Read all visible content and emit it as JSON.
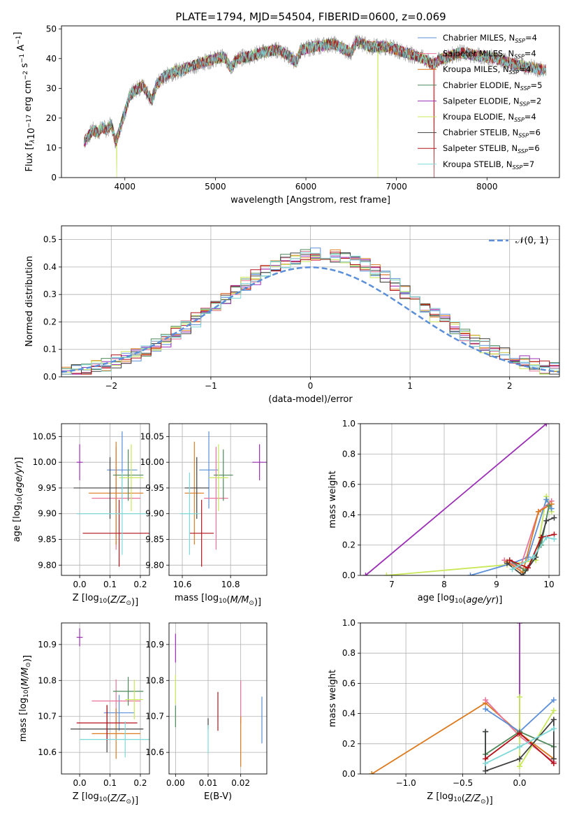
{
  "figure_title": "PLATE=1794, MJD=54504, FIBERID=0600, z=0.069",
  "colors": {
    "Chabrier MILES": "#5b8fd9",
    "Salpeter MILES": "#e8749a",
    "Kroupa MILES": "#dc7a1e",
    "Chabrier ELODIE": "#4f8a5a",
    "Salpeter ELODIE": "#9b2fb5",
    "Kroupa ELODIE": "#c8e85a",
    "Chabrier STELIB": "#404040",
    "Salpeter STELIB": "#b3121a",
    "Kroupa STELIB": "#7fd8d8"
  },
  "chart_data": [
    {
      "id": "spectrum",
      "type": "line",
      "xlabel": "wavelength [Angstrom, rest frame]",
      "ylabel": "Flux [f_λ10^-17 erg cm^-2 s^-1 A^-1]",
      "xlim": [
        3300,
        8800
      ],
      "ylim": [
        0,
        51
      ],
      "xticks": [
        4000,
        5000,
        6000,
        7000,
        8000
      ],
      "yticks": [
        0,
        10,
        20,
        30,
        40,
        50
      ],
      "legend_position": "upper-right",
      "legend": [
        {
          "name": "Chabrier MILES",
          "nssp": "4"
        },
        {
          "name": "Salpeter MILES",
          "nssp": "4"
        },
        {
          "name": "Kroupa MILES",
          "nssp": "4"
        },
        {
          "name": "Chabrier ELODIE",
          "nssp": "5"
        },
        {
          "name": "Salpeter ELODIE",
          "nssp": "2"
        },
        {
          "name": "Kroupa ELODIE",
          "nssp": "4"
        },
        {
          "name": "Chabrier STELIB",
          "nssp": "6"
        },
        {
          "name": "Salpeter STELIB",
          "nssp": "6"
        },
        {
          "name": "Kroupa STELIB",
          "nssp": "7"
        }
      ],
      "envelope": [
        [
          3550,
          12
        ],
        [
          3600,
          14
        ],
        [
          3650,
          16
        ],
        [
          3700,
          15
        ],
        [
          3750,
          17
        ],
        [
          3800,
          16
        ],
        [
          3850,
          18
        ],
        [
          3900,
          12
        ],
        [
          3950,
          17
        ],
        [
          4000,
          22
        ],
        [
          4050,
          27
        ],
        [
          4100,
          29
        ],
        [
          4150,
          30
        ],
        [
          4200,
          31
        ],
        [
          4300,
          26
        ],
        [
          4350,
          31
        ],
        [
          4400,
          33
        ],
        [
          4500,
          35
        ],
        [
          4600,
          36
        ],
        [
          4700,
          37
        ],
        [
          4800,
          38
        ],
        [
          4900,
          39
        ],
        [
          5000,
          40
        ],
        [
          5100,
          40.5
        ],
        [
          5170,
          37
        ],
        [
          5250,
          40
        ],
        [
          5400,
          41
        ],
        [
          5500,
          42
        ],
        [
          5700,
          43
        ],
        [
          5890,
          39
        ],
        [
          5950,
          43
        ],
        [
          6100,
          44
        ],
        [
          6300,
          45
        ],
        [
          6500,
          42
        ],
        [
          6563,
          46
        ],
        [
          6700,
          44
        ],
        [
          6900,
          44
        ],
        [
          7100,
          42
        ],
        [
          7300,
          40
        ],
        [
          7400,
          38
        ],
        [
          7500,
          40
        ],
        [
          7700,
          42
        ],
        [
          7900,
          41
        ],
        [
          8100,
          40
        ],
        [
          8300,
          38
        ],
        [
          8500,
          37
        ],
        [
          8650,
          36
        ]
      ],
      "dropouts": [
        {
          "model": "Kroupa ELODIE",
          "x": 3910
        },
        {
          "model": "Kroupa ELODIE",
          "x": 6795
        },
        {
          "model": "Salpeter STELIB",
          "x": 7415
        }
      ]
    },
    {
      "id": "residual-histogram",
      "type": "histogram",
      "xlabel": "(data-model)/error",
      "ylabel": "Normed distribution",
      "xlim": [
        -2.5,
        2.5
      ],
      "ylim": [
        0,
        0.55
      ],
      "xticks": [
        -2,
        -1,
        0,
        1,
        2
      ],
      "yticks": [
        0.0,
        0.1,
        0.2,
        0.3,
        0.4,
        0.5
      ],
      "grid": true,
      "reference_curve": {
        "name": "𝒩(0, 1)",
        "mean": 0,
        "sigma": 1
      }
    },
    {
      "id": "age-vs-Z",
      "type": "errorbar",
      "xlabel": "Z [log10(Z/Z⊙)]",
      "ylabel": "age  [log10(age/yr)]",
      "xlim": [
        -0.06,
        0.23
      ],
      "ylim": [
        9.78,
        10.075
      ],
      "xticks": [
        0.0,
        0.1,
        0.2
      ],
      "yticks": [
        9.8,
        9.85,
        9.9,
        9.95,
        10.0,
        10.05
      ],
      "grid": true,
      "points": [
        {
          "model": "Chabrier MILES",
          "x": 0.14,
          "xerr": 0.05,
          "y": 9.985,
          "yerr": 0.075
        },
        {
          "model": "Salpeter MILES",
          "x": 0.12,
          "xerr": 0.08,
          "y": 9.93,
          "yerr": 0.1
        },
        {
          "model": "Kroupa MILES",
          "x": 0.12,
          "xerr": 0.09,
          "y": 9.94,
          "yerr": 0.1
        },
        {
          "model": "Chabrier ELODIE",
          "x": 0.16,
          "xerr": 0.05,
          "y": 9.975,
          "yerr": 0.05
        },
        {
          "model": "Salpeter ELODIE",
          "x": 0.0,
          "xerr": 0.01,
          "y": 10.0,
          "yerr": 0.035
        },
        {
          "model": "Kroupa ELODIE",
          "x": 0.17,
          "xerr": 0.04,
          "y": 9.97,
          "yerr": 0.065
        },
        {
          "model": "Chabrier STELIB",
          "x": 0.1,
          "xerr": 0.12,
          "y": 9.95,
          "yerr": 0.06
        },
        {
          "model": "Salpeter STELIB",
          "x": 0.13,
          "xerr": 0.12,
          "y": 9.862,
          "yerr": 0.065
        },
        {
          "model": "Kroupa STELIB",
          "x": 0.14,
          "xerr": 0.15,
          "y": 9.9,
          "yerr": 0.08
        }
      ]
    },
    {
      "id": "age-vs-mass",
      "type": "errorbar",
      "xlabel": "mass [log10(M/M⊙)]",
      "ylabel": "",
      "xlim": [
        10.545,
        10.95
      ],
      "ylim": [
        9.78,
        10.075
      ],
      "xticks": [
        10.6,
        10.8
      ],
      "yticks": [
        9.8,
        9.85,
        9.9,
        9.95,
        10.0,
        10.05
      ],
      "grid": true,
      "points": [
        {
          "model": "Chabrier MILES",
          "x": 10.71,
          "xerr": 0.04,
          "y": 9.985,
          "yerr": 0.075
        },
        {
          "model": "Salpeter MILES",
          "x": 10.74,
          "xerr": 0.05,
          "y": 9.93,
          "yerr": 0.1
        },
        {
          "model": "Kroupa MILES",
          "x": 10.65,
          "xerr": 0.04,
          "y": 9.94,
          "yerr": 0.1
        },
        {
          "model": "Chabrier ELODIE",
          "x": 10.77,
          "xerr": 0.04,
          "y": 9.975,
          "yerr": 0.05
        },
        {
          "model": "Salpeter ELODIE",
          "x": 10.92,
          "xerr": 0.03,
          "y": 10.0,
          "yerr": 0.035
        },
        {
          "model": "Kroupa ELODIE",
          "x": 10.75,
          "xerr": 0.04,
          "y": 9.97,
          "yerr": 0.065
        },
        {
          "model": "Chabrier STELIB",
          "x": 10.66,
          "xerr": 0.05,
          "y": 9.95,
          "yerr": 0.06
        },
        {
          "model": "Salpeter STELIB",
          "x": 10.68,
          "xerr": 0.05,
          "y": 9.862,
          "yerr": 0.065
        },
        {
          "model": "Kroupa STELIB",
          "x": 10.63,
          "xerr": 0.04,
          "y": 9.9,
          "yerr": 0.08
        }
      ]
    },
    {
      "id": "massweight-vs-age",
      "type": "line",
      "xlabel": "age  [log10(age/yr)]",
      "ylabel": "mass weight",
      "xlim": [
        6.4,
        10.2
      ],
      "ylim": [
        0,
        1.0
      ],
      "xticks": [
        7,
        8,
        9,
        10
      ],
      "yticks": [
        0.0,
        0.2,
        0.4,
        0.6,
        0.8,
        1.0
      ],
      "grid": true,
      "series": [
        {
          "model": "Salpeter ELODIE",
          "x": [
            6.5,
            9.95
          ],
          "y": [
            0.0,
            1.0
          ]
        },
        {
          "model": "Kroupa ELODIE",
          "x": [
            6.9,
            9.2,
            9.75,
            9.95,
            10.05
          ],
          "y": [
            0.0,
            0.07,
            0.1,
            0.52,
            0.42
          ]
        },
        {
          "model": "Chabrier MILES",
          "x": [
            8.5,
            9.3,
            9.6,
            9.95,
            10.05
          ],
          "y": [
            0.0,
            0.08,
            0.12,
            0.5,
            0.44
          ]
        },
        {
          "model": "Salpeter MILES",
          "x": [
            9.15,
            9.45,
            9.8,
            10.05
          ],
          "y": [
            0.1,
            0.05,
            0.42,
            0.49
          ]
        },
        {
          "model": "Kroupa MILES",
          "x": [
            9.2,
            9.5,
            9.8,
            10.05
          ],
          "y": [
            0.09,
            0.02,
            0.42,
            0.47
          ]
        },
        {
          "model": "Chabrier ELODIE",
          "x": [
            9.25,
            9.55,
            9.85,
            10.0
          ],
          "y": [
            0.1,
            0.03,
            0.2,
            0.46
          ]
        },
        {
          "model": "Chabrier STELIB",
          "x": [
            9.2,
            9.5,
            9.75,
            9.95,
            10.1
          ],
          "y": [
            0.08,
            0.0,
            0.12,
            0.36,
            0.38
          ]
        },
        {
          "model": "Salpeter STELIB",
          "x": [
            9.25,
            9.6,
            9.85,
            10.1
          ],
          "y": [
            0.1,
            0.05,
            0.25,
            0.27
          ]
        },
        {
          "model": "Kroupa STELIB",
          "x": [
            9.3,
            9.7,
            9.95,
            10.1
          ],
          "y": [
            0.04,
            0.12,
            0.25,
            0.24
          ]
        }
      ]
    },
    {
      "id": "mass-vs-Z",
      "type": "errorbar",
      "xlabel": "Z [log10(Z/Z⊙)]",
      "ylabel": "mass [log10(M/M⊙)]",
      "xlim": [
        -0.06,
        0.23
      ],
      "ylim": [
        10.54,
        10.96
      ],
      "xticks": [
        0.0,
        0.1,
        0.2
      ],
      "yticks": [
        10.6,
        10.7,
        10.8,
        10.9
      ],
      "grid": true,
      "points": [
        {
          "model": "Chabrier MILES",
          "x": 0.13,
          "xerr": 0.05,
          "y": 10.71,
          "yerr": 0.05
        },
        {
          "model": "Salpeter MILES",
          "x": 0.12,
          "xerr": 0.08,
          "y": 10.743,
          "yerr": 0.06
        },
        {
          "model": "Kroupa MILES",
          "x": 0.12,
          "xerr": 0.08,
          "y": 10.652,
          "yerr": 0.07
        },
        {
          "model": "Chabrier ELODIE",
          "x": 0.16,
          "xerr": 0.05,
          "y": 10.77,
          "yerr": 0.04
        },
        {
          "model": "Salpeter ELODIE",
          "x": 0.0,
          "xerr": 0.01,
          "y": 10.92,
          "yerr": 0.025
        },
        {
          "model": "Kroupa ELODIE",
          "x": 0.18,
          "xerr": 0.03,
          "y": 10.747,
          "yerr": 0.055
        },
        {
          "model": "Chabrier STELIB",
          "x": 0.09,
          "xerr": 0.12,
          "y": 10.665,
          "yerr": 0.065
        },
        {
          "model": "Salpeter STELIB",
          "x": 0.09,
          "xerr": 0.1,
          "y": 10.682,
          "yerr": 0.05
        },
        {
          "model": "Kroupa STELIB",
          "x": 0.15,
          "xerr": 0.15,
          "y": 10.636,
          "yerr": 0.05
        }
      ]
    },
    {
      "id": "mass-vs-EBV",
      "type": "errorbar",
      "xlabel": "E(B-V)",
      "ylabel": "",
      "xlim": [
        -0.002,
        0.028
      ],
      "ylim": [
        10.54,
        10.96
      ],
      "xticks": [
        0.0,
        0.01,
        0.02
      ],
      "yticks": [
        10.6,
        10.7,
        10.8,
        10.9
      ],
      "grid": true,
      "points": [
        {
          "model": "Chabrier MILES",
          "x": 0.0265,
          "xerr": 0,
          "y": 10.69,
          "yerr": 0.065
        },
        {
          "model": "Salpeter MILES",
          "x": 0.02,
          "xerr": 0,
          "y": 10.74,
          "yerr": 0.06
        },
        {
          "model": "Kroupa MILES",
          "x": 0.02,
          "xerr": 0,
          "y": 10.63,
          "yerr": 0.07
        },
        {
          "model": "Chabrier ELODIE",
          "x": 0.0,
          "xerr": 0,
          "y": 10.7,
          "yerr": 0.03
        },
        {
          "model": "Salpeter ELODIE",
          "x": 0.0,
          "xerr": 0,
          "y": 10.89,
          "yerr": 0.04
        },
        {
          "model": "Kroupa ELODIE",
          "x": 0.0,
          "xerr": 0,
          "y": 10.775,
          "yerr": 0.04
        },
        {
          "model": "Chabrier STELIB",
          "x": 0.01,
          "xerr": 0,
          "y": 10.68,
          "yerr": 0.015
        },
        {
          "model": "Salpeter STELIB",
          "x": 0.013,
          "xerr": 0,
          "y": 10.714,
          "yerr": 0.054
        },
        {
          "model": "Kroupa STELIB",
          "x": 0.01,
          "xerr": 0,
          "y": 10.636,
          "yerr": 0.04
        }
      ]
    },
    {
      "id": "massweight-vs-Z",
      "type": "line",
      "xlabel": "Z [log10(Z/Z⊙)]",
      "ylabel": "mass weight",
      "xlim": [
        -1.4,
        0.35
      ],
      "ylim": [
        0,
        1.0
      ],
      "xticks": [
        -1.0,
        -0.5,
        0.0
      ],
      "yticks": [
        0.0,
        0.2,
        0.4,
        0.6,
        0.8,
        1.0
      ],
      "grid": true,
      "series": [
        {
          "model": "Kroupa MILES",
          "x": [
            -1.3,
            -0.3,
            0.0,
            0.3
          ],
          "y": [
            0.0,
            0.47,
            0.27,
            0.1
          ]
        },
        {
          "model": "Salpeter MILES",
          "x": [
            -0.3,
            0.0,
            0.3
          ],
          "y": [
            0.49,
            0.25,
            0.08
          ]
        },
        {
          "model": "Chabrier MILES",
          "x": [
            -0.3,
            0.0,
            0.3
          ],
          "y": [
            0.43,
            0.28,
            0.49
          ]
        },
        {
          "model": "Salpeter ELODIE",
          "x": [
            0.0,
            0.0
          ],
          "y": [
            0.27,
            1.0
          ]
        },
        {
          "model": "Kroupa ELODIE",
          "x": [
            0.0,
            0.0,
            0.3
          ],
          "y": [
            0.51,
            0.05,
            0.42
          ]
        },
        {
          "model": "Chabrier ELODIE",
          "x": [
            -0.3,
            -0.3,
            0.0,
            0.3
          ],
          "y": [
            0.28,
            0.13,
            0.28,
            0.18
          ]
        },
        {
          "model": "Chabrier STELIB",
          "x": [
            -0.3,
            -0.3,
            0.0,
            0.3,
            0.3
          ],
          "y": [
            0.28,
            0.02,
            0.1,
            0.36,
            0.1
          ]
        },
        {
          "model": "Salpeter STELIB",
          "x": [
            -0.3,
            0.0,
            0.3
          ],
          "y": [
            0.1,
            0.27,
            0.07
          ]
        },
        {
          "model": "Kroupa STELIB",
          "x": [
            -0.3,
            0.0,
            0.3
          ],
          "y": [
            0.07,
            0.18,
            0.3
          ]
        }
      ]
    }
  ]
}
